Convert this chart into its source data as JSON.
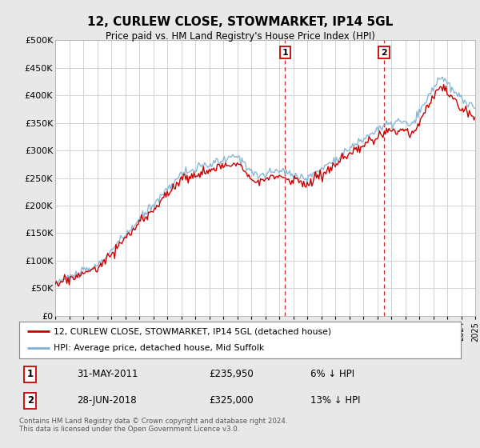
{
  "title": "12, CURLEW CLOSE, STOWMARKET, IP14 5GL",
  "subtitle": "Price paid vs. HM Land Registry's House Price Index (HPI)",
  "ylabel_ticks": [
    "£0",
    "£50K",
    "£100K",
    "£150K",
    "£200K",
    "£250K",
    "£300K",
    "£350K",
    "£400K",
    "£450K",
    "£500K"
  ],
  "ytick_values": [
    0,
    50000,
    100000,
    150000,
    200000,
    250000,
    300000,
    350000,
    400000,
    450000,
    500000
  ],
  "ylim": [
    0,
    500000
  ],
  "sale1_year": 2011.42,
  "sale1_label": "1",
  "sale1_price": 235950,
  "sale1_date": "31-MAY-2011",
  "sale1_pct": "6% ↓ HPI",
  "sale2_year": 2018.48,
  "sale2_label": "2",
  "sale2_price": 325000,
  "sale2_date": "28-JUN-2018",
  "sale2_pct": "13% ↓ HPI",
  "hpi_color": "#7db0d4",
  "price_color": "#cc0000",
  "vline_color": "#cc0000",
  "background_color": "#e8e8e8",
  "plot_bg_color": "#ffffff",
  "grid_color": "#cccccc",
  "legend_label_price": "12, CURLEW CLOSE, STOWMARKET, IP14 5GL (detached house)",
  "legend_label_hpi": "HPI: Average price, detached house, Mid Suffolk",
  "footnote": "Contains HM Land Registry data © Crown copyright and database right 2024.\nThis data is licensed under the Open Government Licence v3.0.",
  "xmin": 1995,
  "xmax": 2025
}
